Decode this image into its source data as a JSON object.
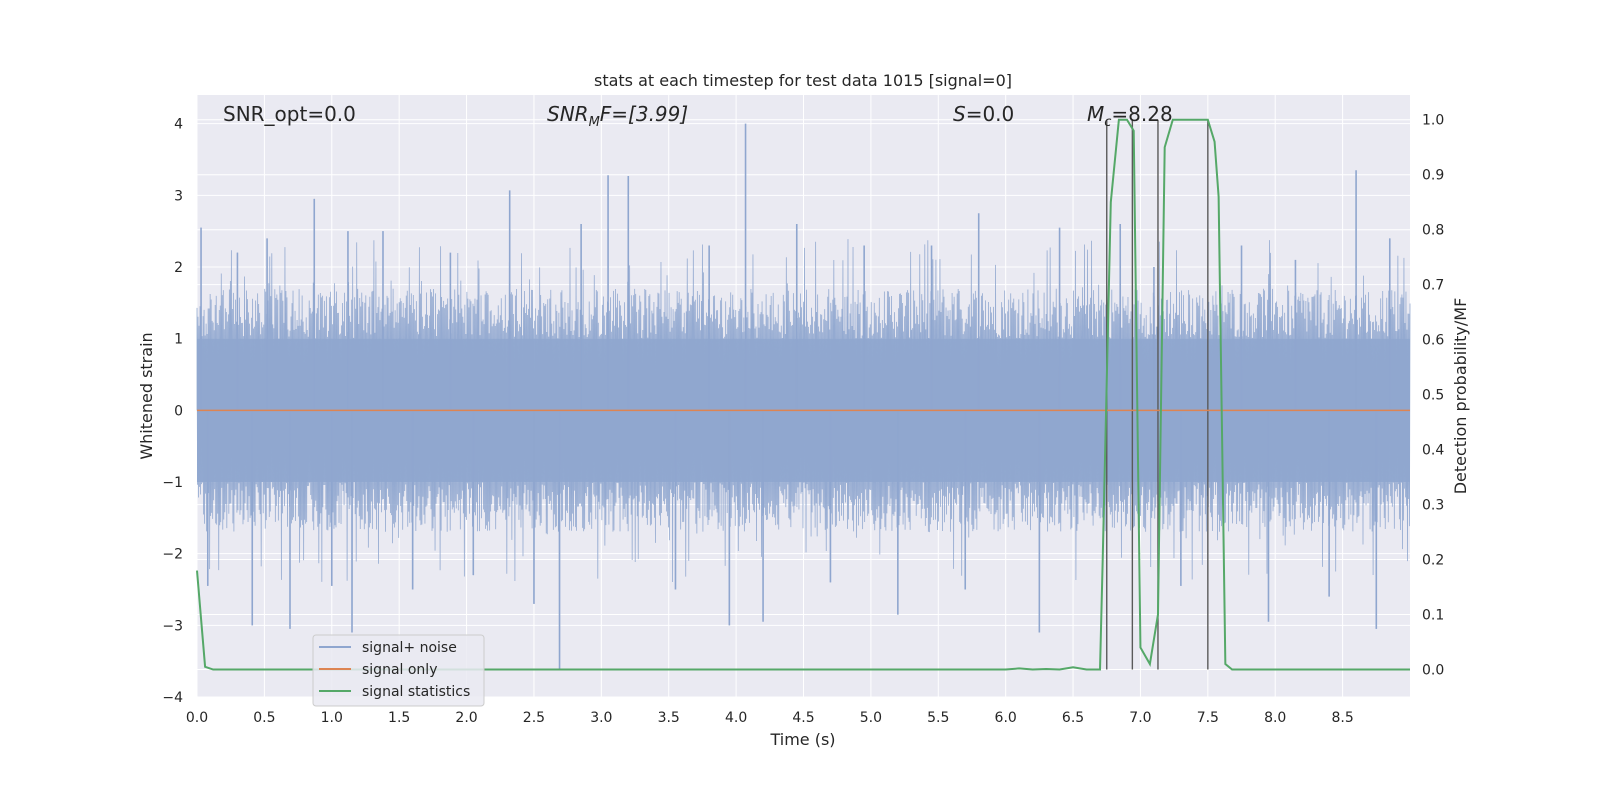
{
  "chart_data": {
    "type": "line",
    "title": "stats at each timestep for test data 1015 [signal=0]",
    "xlabel": "Time (s)",
    "ylabel_left": "Whitened strain",
    "ylabel_right": "Detection probability/MF",
    "xlim": [
      0.0,
      9.0
    ],
    "ylim_left": [
      -4.0,
      4.4
    ],
    "ylim_right": [
      -0.05,
      1.045
    ],
    "x_ticks": [
      "0.0",
      "0.5",
      "1.0",
      "1.5",
      "2.0",
      "2.5",
      "3.0",
      "3.5",
      "4.0",
      "4.5",
      "5.0",
      "5.5",
      "6.0",
      "6.5",
      "7.0",
      "7.5",
      "8.0",
      "8.5"
    ],
    "y_ticks_left": [
      "4",
      "3",
      "2",
      "1",
      "0",
      "−1",
      "−2",
      "−3",
      "−4"
    ],
    "y_ticks_right": [
      "1.0",
      "0.9",
      "0.8",
      "0.7",
      "0.6",
      "0.5",
      "0.4",
      "0.3",
      "0.2",
      "0.1",
      "0.0"
    ],
    "grid": true,
    "legend_position": "lower-left",
    "annotations": {
      "snr_opt": "SNR_opt=0.0",
      "snr_mf_main": "SNR",
      "snr_mf_sub": "M",
      "snr_mf_rest": "F=[3.99]",
      "s_main": "S",
      "s_rest": "=0.0",
      "mc_main": "M",
      "mc_sub": "c",
      "mc_rest": "=8.28"
    },
    "series": [
      {
        "name": "signal+ noise",
        "color": "#8fa6cf",
        "axis": "left",
        "note": "dense noise trace, roughly ±1.5 core with spikes to ±3",
        "peaks": [
          {
            "x": 0.03,
            "y": 2.55
          },
          {
            "x": 0.08,
            "y": -2.45
          },
          {
            "x": 0.3,
            "y": 2.2
          },
          {
            "x": 0.41,
            "y": -3.0
          },
          {
            "x": 0.52,
            "y": 2.4
          },
          {
            "x": 0.69,
            "y": -3.05
          },
          {
            "x": 0.87,
            "y": 2.95
          },
          {
            "x": 1.0,
            "y": -2.45
          },
          {
            "x": 1.12,
            "y": 2.5
          },
          {
            "x": 1.15,
            "y": -3.1
          },
          {
            "x": 1.38,
            "y": 2.5
          },
          {
            "x": 1.6,
            "y": -2.5
          },
          {
            "x": 1.88,
            "y": 2.2
          },
          {
            "x": 2.05,
            "y": -2.3
          },
          {
            "x": 2.32,
            "y": 3.07
          },
          {
            "x": 2.5,
            "y": -2.7
          },
          {
            "x": 2.69,
            "y": -3.62
          },
          {
            "x": 2.85,
            "y": 2.6
          },
          {
            "x": 3.05,
            "y": 3.28
          },
          {
            "x": 3.2,
            "y": 3.27
          },
          {
            "x": 3.55,
            "y": -2.5
          },
          {
            "x": 3.8,
            "y": 2.3
          },
          {
            "x": 3.95,
            "y": -3.0
          },
          {
            "x": 4.07,
            "y": 4.0
          },
          {
            "x": 4.2,
            "y": -2.95
          },
          {
            "x": 4.45,
            "y": 2.6
          },
          {
            "x": 4.7,
            "y": -2.4
          },
          {
            "x": 4.95,
            "y": 2.3
          },
          {
            "x": 5.2,
            "y": -2.85
          },
          {
            "x": 5.45,
            "y": 2.3
          },
          {
            "x": 5.7,
            "y": -2.5
          },
          {
            "x": 5.8,
            "y": 2.75
          },
          {
            "x": 6.25,
            "y": -3.1
          },
          {
            "x": 6.4,
            "y": 2.55
          },
          {
            "x": 6.85,
            "y": 2.6
          },
          {
            "x": 7.1,
            "y": 2.0
          },
          {
            "x": 7.3,
            "y": -2.45
          },
          {
            "x": 7.75,
            "y": 2.3
          },
          {
            "x": 7.95,
            "y": -2.95
          },
          {
            "x": 8.15,
            "y": 2.1
          },
          {
            "x": 8.4,
            "y": -2.6
          },
          {
            "x": 8.6,
            "y": 3.35
          },
          {
            "x": 8.75,
            "y": -3.05
          },
          {
            "x": 8.85,
            "y": 2.4
          }
        ]
      },
      {
        "name": "signal only",
        "color": "#dd8452",
        "axis": "left",
        "x": [
          0.0,
          9.0
        ],
        "y": [
          0.0,
          0.0
        ]
      },
      {
        "name": "signal statistics",
        "color": "#55a868",
        "axis": "right",
        "x": [
          0.0,
          0.06,
          0.12,
          0.5,
          1.0,
          2.0,
          3.0,
          4.0,
          5.0,
          6.0,
          6.1,
          6.2,
          6.3,
          6.4,
          6.5,
          6.6,
          6.7,
          6.72,
          6.78,
          6.84,
          6.9,
          6.95,
          7.0,
          7.07,
          7.13,
          7.18,
          7.24,
          7.3,
          7.4,
          7.5,
          7.55,
          7.58,
          7.63,
          7.68,
          7.75,
          8.0,
          9.0
        ],
        "y": [
          0.18,
          0.005,
          0.0,
          0.0,
          0.0,
          0.0,
          0.0,
          0.0,
          0.0,
          0.0,
          0.002,
          0.0,
          0.001,
          0.0,
          0.004,
          0.0,
          0.0,
          0.2,
          0.85,
          1.0,
          1.0,
          0.98,
          0.04,
          0.01,
          0.1,
          0.95,
          1.0,
          1.0,
          1.0,
          1.0,
          0.96,
          0.86,
          0.01,
          0.0,
          0.0,
          0.0,
          0.0
        ]
      }
    ],
    "vertical_markers": [
      6.75,
      6.94,
      7.13,
      7.5
    ]
  },
  "colors": {
    "plot_bg": "#eaeaf2",
    "grid": "#ffffff",
    "noise": "#8fa6cf",
    "signal": "#dd8452",
    "stats": "#55a868",
    "marker": "#5a5a5a"
  }
}
